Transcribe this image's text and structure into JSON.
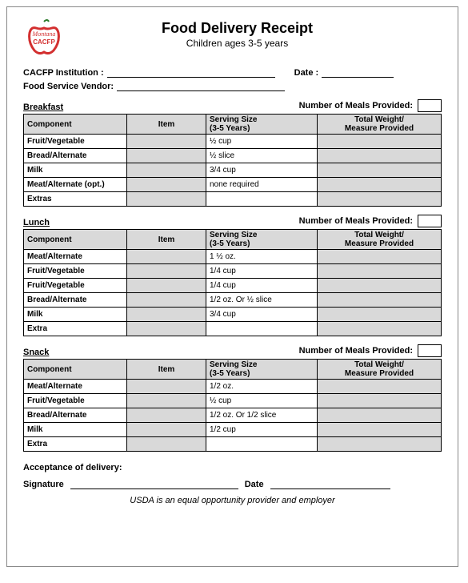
{
  "logo": {
    "text1": "Montana",
    "text2": "CACFP"
  },
  "title": "Food Delivery Receipt",
  "subtitle": "Children ages 3-5 years",
  "fields": {
    "institution_label": "CACFP Institution :",
    "date_label": "Date :",
    "vendor_label": "Food Service Vendor:"
  },
  "meals_label": "Number of Meals Provided:",
  "columns": {
    "component": "Component",
    "item": "Item",
    "serving": "Serving Size\n(3-5 Years)",
    "total": "Total Weight/\nMeasure Provided"
  },
  "breakfast": {
    "title": "Breakfast",
    "rows": [
      {
        "component": "Fruit/Vegetable",
        "serving": "½ cup"
      },
      {
        "component": "Bread/Alternate",
        "serving": "½ slice"
      },
      {
        "component": "Milk",
        "serving": "3/4 cup"
      },
      {
        "component": "Meat/Alternate (opt.)",
        "serving": "none required"
      },
      {
        "component": "Extras",
        "serving": ""
      }
    ]
  },
  "lunch": {
    "title": "Lunch",
    "rows": [
      {
        "component": "Meat/Alternate",
        "serving": "1 ½ oz."
      },
      {
        "component": "Fruit/Vegetable",
        "serving": "1/4 cup"
      },
      {
        "component": "Fruit/Vegetable",
        "serving": "1/4 cup"
      },
      {
        "component": "Bread/Alternate",
        "serving": "1/2 oz. Or ½ slice"
      },
      {
        "component": "Milk",
        "serving": "3/4 cup"
      },
      {
        "component": "Extra",
        "serving": ""
      }
    ]
  },
  "snack": {
    "title": "Snack",
    "rows": [
      {
        "component": "Meat/Alternate",
        "serving": "1/2 oz."
      },
      {
        "component": "Fruit/Vegetable",
        "serving": "½ cup"
      },
      {
        "component": "Bread/Alternate",
        "serving": "1/2 oz. Or 1/2 slice"
      },
      {
        "component": "Milk",
        "serving": "1/2 cup"
      },
      {
        "component": "Extra",
        "serving": ""
      }
    ]
  },
  "acceptance": {
    "title": "Acceptance of delivery:",
    "signature_label": "Signature",
    "date_label": "Date"
  },
  "footer": "USDA is an equal opportunity provider and employer",
  "style": {
    "header_bg": "#d9d9d9",
    "border_color": "#000000",
    "apple_color": "#d32f2f",
    "title_fontsize": 18,
    "body_fontsize": 10
  }
}
